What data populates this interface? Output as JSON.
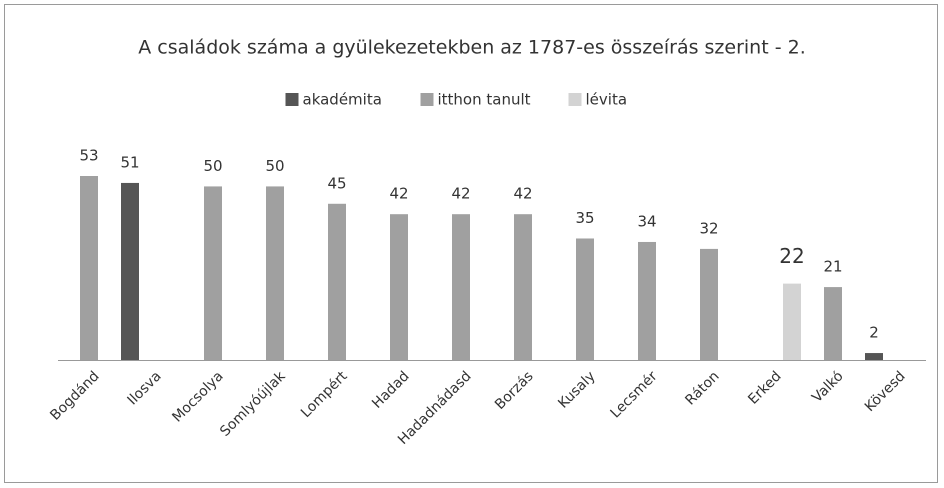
{
  "chart_data": {
    "type": "bar",
    "title": "A családok száma a gyülekezetekben az 1787-es összeírás szerint - 2.",
    "categories": [
      "Bogdánd",
      "Ilosva",
      "Mocsolya",
      "Somlyóújlak",
      "Lompért",
      "Hadad",
      "Hadadnádasd",
      "Borzás",
      "Kusaly",
      "Lecsmér",
      "Ráton",
      "Erked",
      "Valkó",
      "Kövesd"
    ],
    "series": [
      {
        "name": "akadémita",
        "color": "#555555",
        "values": [
          null,
          51,
          null,
          null,
          null,
          null,
          null,
          null,
          null,
          null,
          null,
          null,
          null,
          2
        ]
      },
      {
        "name": "itthon tanult",
        "color": "#a0a0a0",
        "values": [
          53,
          null,
          50,
          50,
          45,
          42,
          42,
          42,
          35,
          34,
          32,
          null,
          21,
          null
        ]
      },
      {
        "name": "lévita",
        "color": "#d3d3d3",
        "values": [
          null,
          null,
          null,
          null,
          null,
          null,
          null,
          null,
          null,
          null,
          null,
          22,
          null,
          null
        ]
      }
    ],
    "legend": "top"
  }
}
